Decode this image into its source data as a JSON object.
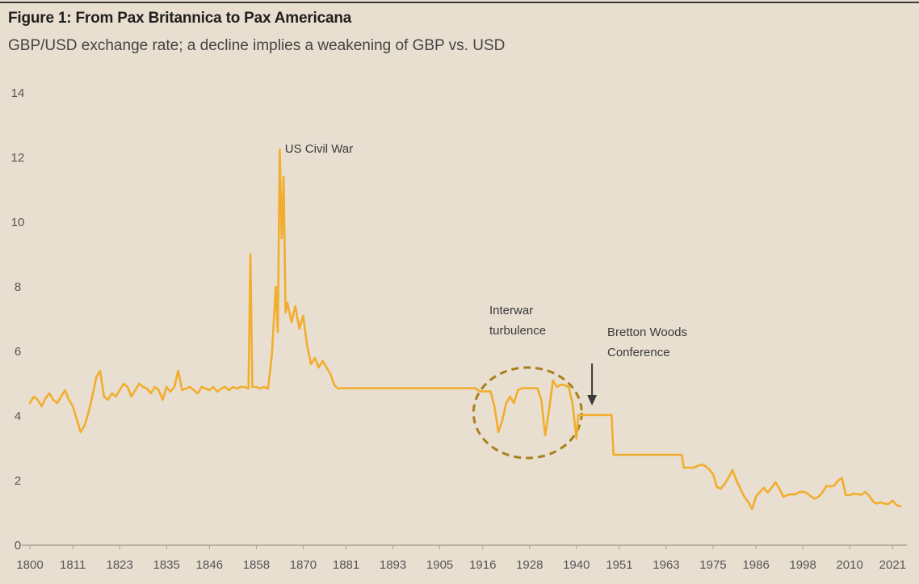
{
  "figure": {
    "title": "Figure 1: From Pax Britannica to Pax Americana",
    "subtitle": "GBP/USD exchange rate; a decline implies a weakening of GBP vs. USD"
  },
  "colors": {
    "line": "#f2ad2c",
    "circle": "#a8801e",
    "axis": "#a8a08f",
    "text": "#555555",
    "arrow": "#3a3a3a"
  },
  "chart_data": {
    "type": "line",
    "title": "Figure 1: From Pax Britannica to Pax Americana",
    "subtitle": "GBP/USD exchange rate; a decline implies a weakening of GBP vs. USD",
    "xlabel": "",
    "ylabel": "",
    "xlim": [
      1800,
      2023
    ],
    "ylim": [
      0,
      14
    ],
    "x_ticks": [
      1800,
      1811,
      1823,
      1835,
      1846,
      1858,
      1870,
      1881,
      1893,
      1905,
      1916,
      1928,
      1940,
      1951,
      1963,
      1975,
      1986,
      1998,
      2010,
      2021
    ],
    "y_ticks": [
      0,
      2,
      4,
      6,
      8,
      10,
      12,
      14
    ],
    "grid": false,
    "series": [
      {
        "name": "",
        "color": "#f2ad2c",
        "points": [
          [
            1800,
            4.4
          ],
          [
            1801,
            4.6
          ],
          [
            1802,
            4.5
          ],
          [
            1803,
            4.3
          ],
          [
            1804,
            4.55
          ],
          [
            1805,
            4.7
          ],
          [
            1806,
            4.5
          ],
          [
            1807,
            4.4
          ],
          [
            1808,
            4.6
          ],
          [
            1809,
            4.8
          ],
          [
            1810,
            4.5
          ],
          [
            1811,
            4.3
          ],
          [
            1812,
            3.9
          ],
          [
            1813,
            3.5
          ],
          [
            1814,
            3.7
          ],
          [
            1815,
            4.1
          ],
          [
            1816,
            4.6
          ],
          [
            1817,
            5.2
          ],
          [
            1818,
            5.4
          ],
          [
            1819,
            4.6
          ],
          [
            1820,
            4.5
          ],
          [
            1821,
            4.7
          ],
          [
            1822,
            4.6
          ],
          [
            1823,
            4.8
          ],
          [
            1824,
            5.0
          ],
          [
            1825,
            4.9
          ],
          [
            1826,
            4.6
          ],
          [
            1827,
            4.8
          ],
          [
            1828,
            5.0
          ],
          [
            1829,
            4.9
          ],
          [
            1830,
            4.85
          ],
          [
            1831,
            4.7
          ],
          [
            1832,
            4.9
          ],
          [
            1833,
            4.8
          ],
          [
            1834,
            4.5
          ],
          [
            1835,
            4.9
          ],
          [
            1836,
            4.75
          ],
          [
            1837,
            4.9
          ],
          [
            1838,
            5.4
          ],
          [
            1839,
            4.8
          ],
          [
            1840,
            4.85
          ],
          [
            1841,
            4.9
          ],
          [
            1842,
            4.8
          ],
          [
            1843,
            4.7
          ],
          [
            1844,
            4.9
          ],
          [
            1845,
            4.85
          ],
          [
            1846,
            4.8
          ],
          [
            1847,
            4.9
          ],
          [
            1848,
            4.75
          ],
          [
            1849,
            4.85
          ],
          [
            1850,
            4.9
          ],
          [
            1851,
            4.8
          ],
          [
            1852,
            4.9
          ],
          [
            1853,
            4.85
          ],
          [
            1854,
            4.9
          ],
          [
            1855,
            4.9
          ],
          [
            1856,
            4.85
          ],
          [
            1856.5,
            9.0
          ],
          [
            1857,
            4.9
          ],
          [
            1858,
            4.9
          ],
          [
            1859,
            4.85
          ],
          [
            1860,
            4.9
          ],
          [
            1861,
            4.85
          ],
          [
            1862,
            5.9
          ],
          [
            1863,
            8.0
          ],
          [
            1863.5,
            6.6
          ],
          [
            1864,
            12.25
          ],
          [
            1864.5,
            9.5
          ],
          [
            1865,
            11.4
          ],
          [
            1865.5,
            7.2
          ],
          [
            1866,
            7.5
          ],
          [
            1867,
            6.9
          ],
          [
            1868,
            7.4
          ],
          [
            1869,
            6.7
          ],
          [
            1870,
            7.1
          ],
          [
            1871,
            6.2
          ],
          [
            1872,
            5.6
          ],
          [
            1873,
            5.8
          ],
          [
            1874,
            5.5
          ],
          [
            1875,
            5.7
          ],
          [
            1876,
            5.5
          ],
          [
            1877,
            5.3
          ],
          [
            1878,
            4.95
          ],
          [
            1879,
            4.85
          ],
          [
            1880,
            4.86
          ],
          [
            1885,
            4.86
          ],
          [
            1890,
            4.86
          ],
          [
            1895,
            4.86
          ],
          [
            1900,
            4.86
          ],
          [
            1905,
            4.86
          ],
          [
            1910,
            4.86
          ],
          [
            1914,
            4.86
          ],
          [
            1915,
            4.78
          ],
          [
            1916,
            4.76
          ],
          [
            1917,
            4.76
          ],
          [
            1918,
            4.76
          ],
          [
            1919,
            4.3
          ],
          [
            1920,
            3.5
          ],
          [
            1921,
            3.85
          ],
          [
            1922,
            4.4
          ],
          [
            1923,
            4.6
          ],
          [
            1924,
            4.4
          ],
          [
            1925,
            4.8
          ],
          [
            1926,
            4.86
          ],
          [
            1927,
            4.86
          ],
          [
            1928,
            4.86
          ],
          [
            1929,
            4.86
          ],
          [
            1930,
            4.86
          ],
          [
            1931,
            4.5
          ],
          [
            1932,
            3.4
          ],
          [
            1933,
            4.2
          ],
          [
            1934,
            5.1
          ],
          [
            1935,
            4.9
          ],
          [
            1936,
            4.97
          ],
          [
            1937,
            4.95
          ],
          [
            1938,
            4.9
          ],
          [
            1939,
            4.4
          ],
          [
            1940,
            3.3
          ],
          [
            1940.5,
            4.03
          ],
          [
            1945,
            4.03
          ],
          [
            1949,
            4.03
          ],
          [
            1949.5,
            2.8
          ],
          [
            1955,
            2.8
          ],
          [
            1960,
            2.8
          ],
          [
            1965,
            2.8
          ],
          [
            1967,
            2.8
          ],
          [
            1967.5,
            2.4
          ],
          [
            1970,
            2.4
          ],
          [
            1971,
            2.45
          ],
          [
            1972,
            2.5
          ],
          [
            1973,
            2.45
          ],
          [
            1974,
            2.35
          ],
          [
            1975,
            2.2
          ],
          [
            1976,
            1.8
          ],
          [
            1977,
            1.75
          ],
          [
            1978,
            1.9
          ],
          [
            1979,
            2.1
          ],
          [
            1980,
            2.33
          ],
          [
            1981,
            2.0
          ],
          [
            1982,
            1.75
          ],
          [
            1983,
            1.5
          ],
          [
            1984,
            1.34
          ],
          [
            1985,
            1.12
          ],
          [
            1986,
            1.5
          ],
          [
            1987,
            1.65
          ],
          [
            1988,
            1.78
          ],
          [
            1989,
            1.63
          ],
          [
            1990,
            1.78
          ],
          [
            1991,
            1.95
          ],
          [
            1992,
            1.75
          ],
          [
            1993,
            1.5
          ],
          [
            1994,
            1.55
          ],
          [
            1995,
            1.58
          ],
          [
            1996,
            1.57
          ],
          [
            1997,
            1.64
          ],
          [
            1998,
            1.66
          ],
          [
            1999,
            1.62
          ],
          [
            2000,
            1.52
          ],
          [
            2001,
            1.44
          ],
          [
            2002,
            1.5
          ],
          [
            2003,
            1.63
          ],
          [
            2004,
            1.83
          ],
          [
            2005,
            1.82
          ],
          [
            2006,
            1.84
          ],
          [
            2007,
            2.0
          ],
          [
            2008,
            2.08
          ],
          [
            2009,
            1.55
          ],
          [
            2010,
            1.55
          ],
          [
            2011,
            1.6
          ],
          [
            2012,
            1.58
          ],
          [
            2013,
            1.56
          ],
          [
            2014,
            1.65
          ],
          [
            2015,
            1.53
          ],
          [
            2016,
            1.35
          ],
          [
            2017,
            1.29
          ],
          [
            2018,
            1.33
          ],
          [
            2019,
            1.28
          ],
          [
            2020,
            1.28
          ],
          [
            2021,
            1.38
          ],
          [
            2022,
            1.24
          ],
          [
            2023,
            1.2
          ]
        ]
      }
    ],
    "annotations": [
      {
        "lines": [
          "US Civil War"
        ],
        "x": 1864.5,
        "y": 12.3
      },
      {
        "lines": [
          "Interwar",
          "turbulence"
        ],
        "x": 1927.5,
        "y": 4.1,
        "style": "dashed-ellipse"
      },
      {
        "lines": [
          "Bretton Woods",
          "Conference"
        ],
        "x": 1944,
        "y": 4.3,
        "style": "arrow-down"
      }
    ]
  }
}
